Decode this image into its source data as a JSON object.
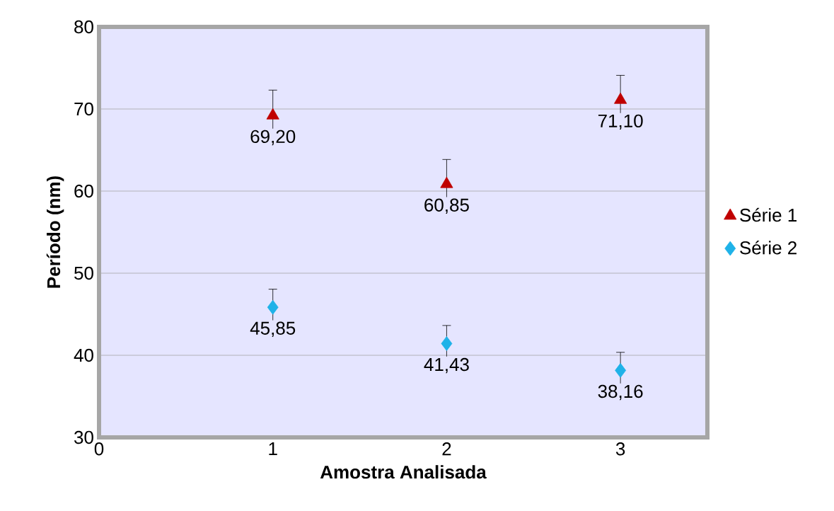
{
  "chart_data": {
    "type": "scatter",
    "xlabel": "Amostra  Analisada",
    "ylabel": "Período (nm)",
    "xlim": [
      0,
      3.5
    ],
    "xticks": [
      0,
      1,
      2,
      3
    ],
    "ylim": [
      30,
      80
    ],
    "yticks": [
      30,
      40,
      50,
      60,
      70,
      80
    ],
    "grid": "y",
    "legend": "right",
    "series": [
      {
        "name": "Série 1",
        "color": "#c00000",
        "marker": "triangle",
        "x": [
          1,
          2,
          3
        ],
        "values": [
          69.2,
          60.85,
          71.1
        ],
        "errors": [
          3.1,
          3.0,
          3.0
        ],
        "value_labels": [
          "69,20",
          "60,85",
          "71,10"
        ]
      },
      {
        "name": "Série 2",
        "color": "#1fb2e8",
        "marker": "diamond",
        "x": [
          1,
          2,
          3
        ],
        "values": [
          45.85,
          41.43,
          38.16
        ],
        "errors": [
          2.2,
          2.2,
          2.2
        ],
        "value_labels": [
          "45,85",
          "41,43",
          "38,16"
        ]
      }
    ]
  }
}
